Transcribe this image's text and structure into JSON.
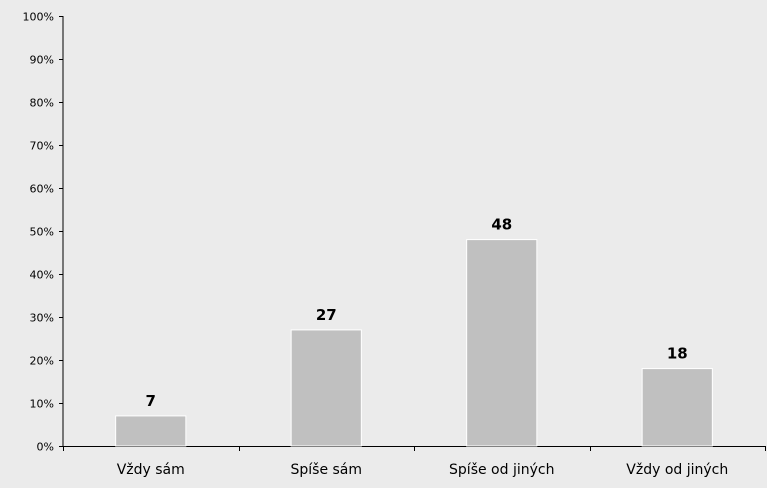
{
  "chart_data": {
    "type": "bar",
    "title": "",
    "xlabel": "",
    "ylabel": "",
    "categories": [
      "Vždy sám",
      "Spíše sám",
      "Spíše od jiných",
      "Vždy od jiných"
    ],
    "values": [
      7,
      27,
      48,
      18
    ],
    "data_labels": [
      "7",
      "27",
      "48",
      "18"
    ],
    "ylim": [
      0,
      100
    ],
    "yticks": [
      0,
      10,
      20,
      30,
      40,
      50,
      60,
      70,
      80,
      90,
      100
    ],
    "ytick_labels": [
      "0%",
      "10%",
      "20%",
      "30%",
      "40%",
      "50%",
      "60%",
      "70%",
      "80%",
      "90%",
      "100%"
    ],
    "grid": false,
    "legend": "none",
    "colors": {
      "background": "#ebebeb",
      "bar_fill": "#c0c0c0",
      "bar_stroke": "#ffffff",
      "axis": "#000000",
      "text": "#000000"
    }
  }
}
